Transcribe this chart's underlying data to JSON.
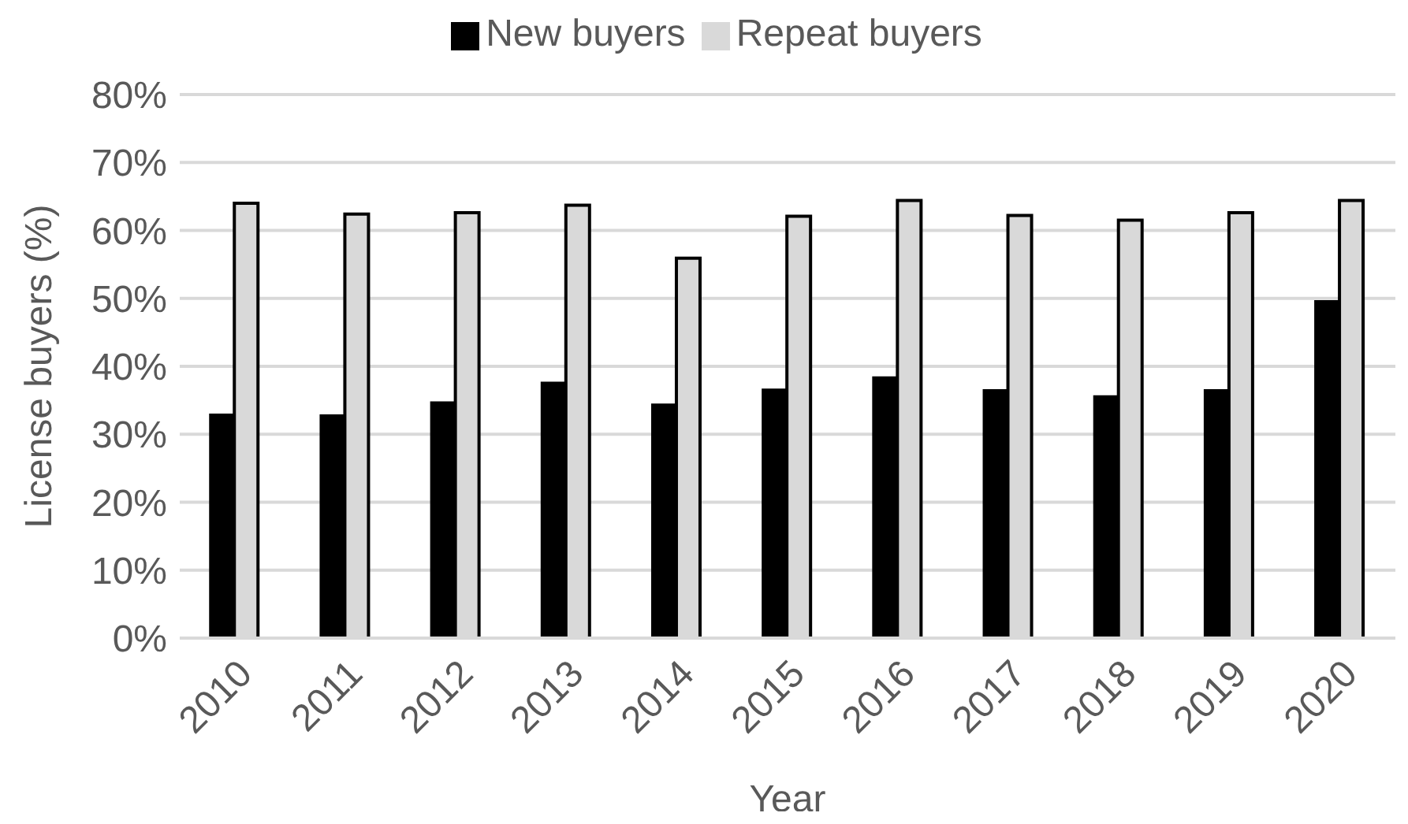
{
  "chart_data": {
    "type": "bar",
    "xlabel": "Year",
    "ylabel": "License buyers (%)",
    "categories": [
      "2010",
      "2011",
      "2012",
      "2013",
      "2014",
      "2015",
      "2016",
      "2017",
      "2018",
      "2019",
      "2020"
    ],
    "series": [
      {
        "name": "New buyers",
        "color": "#000000",
        "values": [
          32.8,
          32.7,
          34.6,
          37.5,
          34.3,
          36.5,
          38.3,
          36.4,
          35.5,
          36.4,
          49.5
        ]
      },
      {
        "name": "Repeat buyers",
        "color": "#d9d9d9",
        "values": [
          64.0,
          62.4,
          62.6,
          63.7,
          55.9,
          62.1,
          64.4,
          62.2,
          61.5,
          62.6,
          64.4
        ]
      }
    ],
    "ylim": [
      0,
      80
    ],
    "yticks": [
      {
        "value": 0,
        "label": "0%"
      },
      {
        "value": 10,
        "label": "10%"
      },
      {
        "value": 20,
        "label": "20%"
      },
      {
        "value": 30,
        "label": "30%"
      },
      {
        "value": 40,
        "label": "40%"
      },
      {
        "value": 50,
        "label": "50%"
      },
      {
        "value": 60,
        "label": "60%"
      },
      {
        "value": 70,
        "label": "70%"
      },
      {
        "value": 80,
        "label": "80%"
      }
    ],
    "grid": "y",
    "legend": "top"
  }
}
